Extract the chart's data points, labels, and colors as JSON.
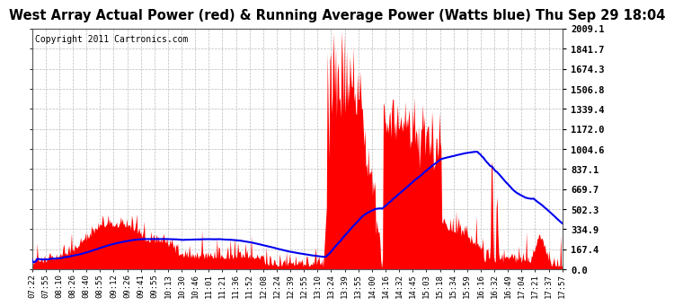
{
  "title": "West Array Actual Power (red) & Running Average Power (Watts blue) Thu Sep 29 18:04",
  "copyright": "Copyright 2011 Cartronics.com",
  "bg_color": "#ffffff",
  "bar_color": "#ff0000",
  "line_color": "#0000ee",
  "grid_color": "#bbbbbb",
  "y_max": 2009.1,
  "y_min": 0.0,
  "y_ticks": [
    0.0,
    167.4,
    334.9,
    502.3,
    669.7,
    837.1,
    1004.6,
    1172.0,
    1339.4,
    1506.8,
    1674.3,
    1841.7,
    2009.1
  ],
  "x_labels": [
    "07:22",
    "07:55",
    "08:10",
    "08:26",
    "08:40",
    "08:55",
    "09:12",
    "09:26",
    "09:41",
    "09:55",
    "10:13",
    "10:30",
    "10:46",
    "11:01",
    "11:21",
    "11:36",
    "11:52",
    "12:08",
    "12:24",
    "12:39",
    "12:55",
    "13:10",
    "13:24",
    "13:39",
    "13:55",
    "14:00",
    "14:16",
    "14:32",
    "14:45",
    "15:03",
    "15:18",
    "15:34",
    "15:59",
    "16:16",
    "16:32",
    "16:49",
    "17:04",
    "17:21",
    "17:37",
    "17:57"
  ],
  "title_fontsize": 10.5,
  "copyright_fontsize": 7,
  "tick_fontsize": 6.5,
  "ytick_fontsize": 7.5
}
